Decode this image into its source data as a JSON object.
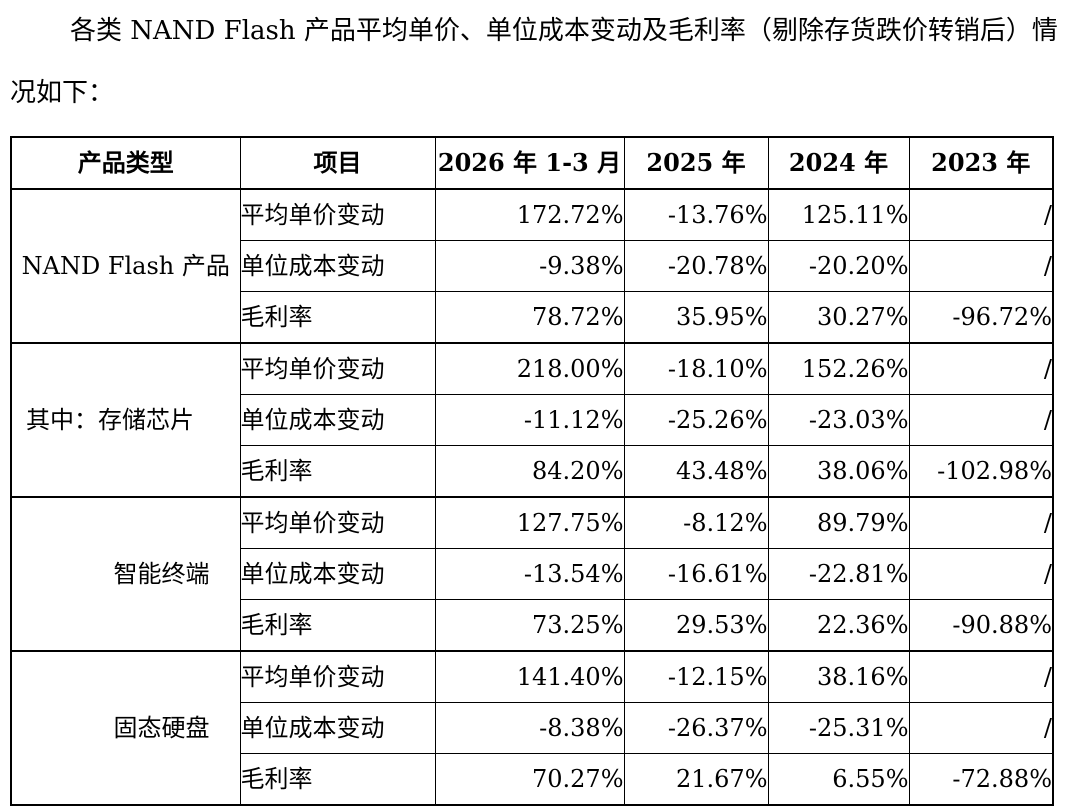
{
  "intro": "各类 NAND Flash 产品平均单价、单位成本变动及毛利率（剔除存货跌价转销后）情况如下：",
  "table": {
    "headers": [
      "产品类型",
      "项目",
      "2026 年 1-3 月",
      "2025 年",
      "2024 年",
      "2023 年"
    ],
    "groups": [
      {
        "category": "NAND Flash 产品",
        "rows": [
          {
            "item": "平均单价变动",
            "v2026q1": "172.72%",
            "v2025": "-13.76%",
            "v2024": "125.11%",
            "v2023": "/"
          },
          {
            "item": "单位成本变动",
            "v2026q1": "-9.38%",
            "v2025": "-20.78%",
            "v2024": "-20.20%",
            "v2023": "/"
          },
          {
            "item": "毛利率",
            "v2026q1": "78.72%",
            "v2025": "35.95%",
            "v2024": "30.27%",
            "v2023": "-96.72%"
          }
        ]
      },
      {
        "category": "其中：存储芯片",
        "rows": [
          {
            "item": "平均单价变动",
            "v2026q1": "218.00%",
            "v2025": "-18.10%",
            "v2024": "152.26%",
            "v2023": "/"
          },
          {
            "item": "单位成本变动",
            "v2026q1": "-11.12%",
            "v2025": "-25.26%",
            "v2024": "-23.03%",
            "v2023": "/"
          },
          {
            "item": "毛利率",
            "v2026q1": "84.20%",
            "v2025": "43.48%",
            "v2024": "38.06%",
            "v2023": "-102.98%"
          }
        ]
      },
      {
        "category": "智能终端",
        "rows": [
          {
            "item": "平均单价变动",
            "v2026q1": "127.75%",
            "v2025": "-8.12%",
            "v2024": "89.79%",
            "v2023": "/"
          },
          {
            "item": "单位成本变动",
            "v2026q1": "-13.54%",
            "v2025": "-16.61%",
            "v2024": "-22.81%",
            "v2023": "/"
          },
          {
            "item": "毛利率",
            "v2026q1": "73.25%",
            "v2025": "29.53%",
            "v2024": "22.36%",
            "v2023": "-90.88%"
          }
        ]
      },
      {
        "category": "固态硬盘",
        "rows": [
          {
            "item": "平均单价变动",
            "v2026q1": "141.40%",
            "v2025": "-12.15%",
            "v2024": "38.16%",
            "v2023": "/"
          },
          {
            "item": "单位成本变动",
            "v2026q1": "-8.38%",
            "v2025": "-26.37%",
            "v2024": "-25.31%",
            "v2023": "/"
          },
          {
            "item": "毛利率",
            "v2026q1": "70.27%",
            "v2025": "21.67%",
            "v2024": "6.55%",
            "v2023": "-72.88%"
          }
        ]
      }
    ]
  }
}
